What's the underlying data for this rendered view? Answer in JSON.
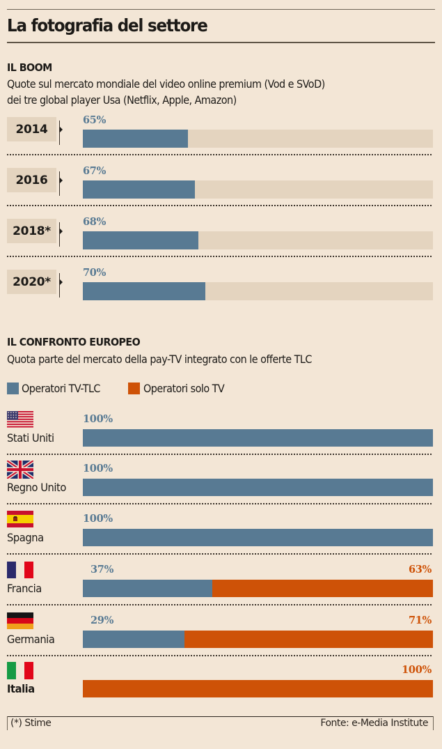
{
  "header": {
    "title": "La fotografia del settore"
  },
  "boom": {
    "heading": "IL BOOM",
    "subtitle_line1": "Quote sul mercato mondiale del video online premium (Vod e SVoD)",
    "subtitle_line2": "dei tre global player Usa (Netflix, Apple, Amazon)"
  },
  "europe": {
    "heading": "IL CONFRONTO EUROPEO",
    "subtitle": "Quota parte del mercato della pay-TV integrato con le offerte TLC"
  },
  "legend": [
    {
      "label": "Operatori TV-TLC",
      "color": "#587A93"
    },
    {
      "label": "Operatori solo TV",
      "color": "#CE5207"
    }
  ],
  "footer": {
    "note": "(*) Stime",
    "source": "Fonte: e-Media Institute"
  },
  "colors": {
    "background": "#F3E6D6",
    "track": "#E4D4BF",
    "tv_tlc": "#587A93",
    "solo_tv": "#CE5207"
  },
  "chart_data": [
    {
      "type": "bar",
      "orientation": "horizontal",
      "title": "IL BOOM",
      "subtitle": "Quote sul mercato mondiale del video online premium (Vod e SVoD) dei tre global player Usa (Netflix, Apple, Amazon)",
      "categories": [
        "2014",
        "2016",
        "2018*",
        "2020*"
      ],
      "values": [
        65,
        67,
        68,
        70
      ],
      "value_labels": [
        "65%",
        "67%",
        "68%",
        "70%"
      ],
      "unit": "%",
      "grid": false
    },
    {
      "type": "bar",
      "orientation": "horizontal",
      "stacked": true,
      "title": "IL CONFRONTO EUROPEO",
      "subtitle": "Quota parte del mercato della pay-TV integrato con le offerte TLC",
      "categories": [
        "Stati Uniti",
        "Regno Unito",
        "Spagna",
        "Francia",
        "Germania",
        "Italia"
      ],
      "series": [
        {
          "name": "Operatori TV-TLC",
          "values": [
            100,
            100,
            100,
            37,
            29,
            0
          ],
          "labels": [
            "100%",
            "100%",
            "100%",
            "37%",
            "29%",
            ""
          ]
        },
        {
          "name": "Operatori solo TV",
          "values": [
            0,
            0,
            0,
            63,
            71,
            100
          ],
          "labels": [
            "",
            "",
            "",
            "63%",
            "71%",
            "100%"
          ]
        }
      ],
      "xlim": [
        0,
        100
      ],
      "unit": "%",
      "legend": "top-left",
      "grid": false
    }
  ]
}
